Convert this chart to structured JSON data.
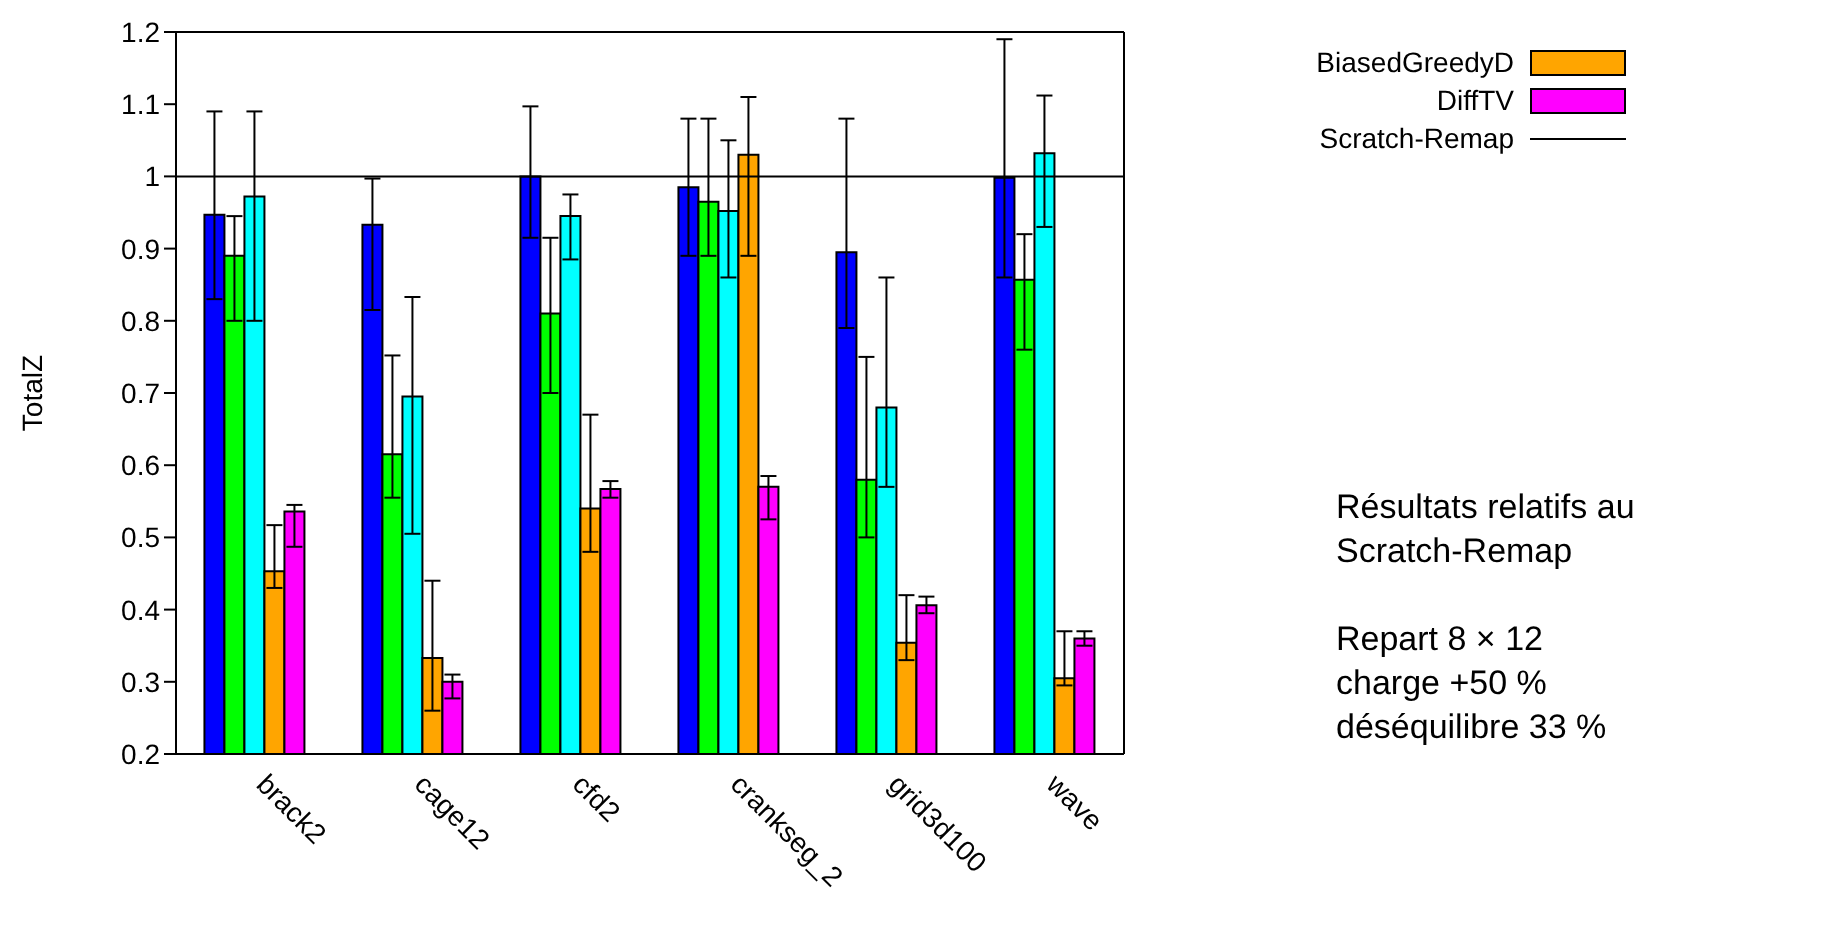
{
  "chart_data": {
    "type": "bar",
    "ylabel": "TotalZ",
    "categories": [
      "brack2",
      "cage12",
      "cfd2",
      "crankseg_2",
      "grid3d100",
      "wave"
    ],
    "series": [
      {
        "color": "#0000ff",
        "values": [
          0.947,
          0.933,
          1.0,
          0.985,
          0.895,
          0.998
        ],
        "errors": [
          [
            0.83,
            1.09
          ],
          [
            0.815,
            0.997
          ],
          [
            0.915,
            1.097
          ],
          [
            0.89,
            1.08
          ],
          [
            0.79,
            1.08
          ],
          [
            0.86,
            1.19
          ]
        ]
      },
      {
        "color": "#00ff00",
        "values": [
          0.89,
          0.615,
          0.81,
          0.965,
          0.58,
          0.857
        ],
        "errors": [
          [
            0.8,
            0.945
          ],
          [
            0.555,
            0.752
          ],
          [
            0.7,
            0.915
          ],
          [
            0.89,
            1.08
          ],
          [
            0.5,
            0.75
          ],
          [
            0.76,
            0.92
          ]
        ]
      },
      {
        "color": "#00ffff",
        "values": [
          0.972,
          0.695,
          0.945,
          0.952,
          0.68,
          1.032
        ],
        "errors": [
          [
            0.8,
            1.09
          ],
          [
            0.505,
            0.833
          ],
          [
            0.885,
            0.975
          ],
          [
            0.86,
            1.05
          ],
          [
            0.57,
            0.86
          ],
          [
            0.93,
            1.112
          ]
        ]
      },
      {
        "name": "BiasedGreedyD",
        "color": "#ffa500",
        "values": [
          0.453,
          0.333,
          0.54,
          1.03,
          0.354,
          0.305
        ],
        "errors": [
          [
            0.43,
            0.517
          ],
          [
            0.26,
            0.44
          ],
          [
            0.48,
            0.67
          ],
          [
            0.89,
            1.11
          ],
          [
            0.33,
            0.42
          ],
          [
            0.295,
            0.37
          ]
        ]
      },
      {
        "name": "DiffTV",
        "color": "#ff00ff",
        "values": [
          0.536,
          0.3,
          0.567,
          0.57,
          0.406,
          0.36
        ],
        "errors": [
          [
            0.487,
            0.545
          ],
          [
            0.277,
            0.31
          ],
          [
            0.555,
            0.578
          ],
          [
            0.525,
            0.585
          ],
          [
            0.395,
            0.418
          ],
          [
            0.35,
            0.37
          ]
        ]
      }
    ],
    "ylim": [
      0.2,
      1.2
    ],
    "yticks": [
      0.2,
      0.3,
      0.4,
      0.5,
      0.6,
      0.7,
      0.8,
      0.9,
      1,
      1.1,
      1.2
    ],
    "ref_lines": [
      {
        "axis": "y",
        "value": 1,
        "label": "Scratch-Remap",
        "color": "#000000"
      }
    ],
    "legend": "right",
    "annotations": [
      "Résultats relatifs au Scratch-Remap",
      "Repart 8 × 12",
      "charge +50 %",
      "déséquilibre 33 %"
    ]
  }
}
